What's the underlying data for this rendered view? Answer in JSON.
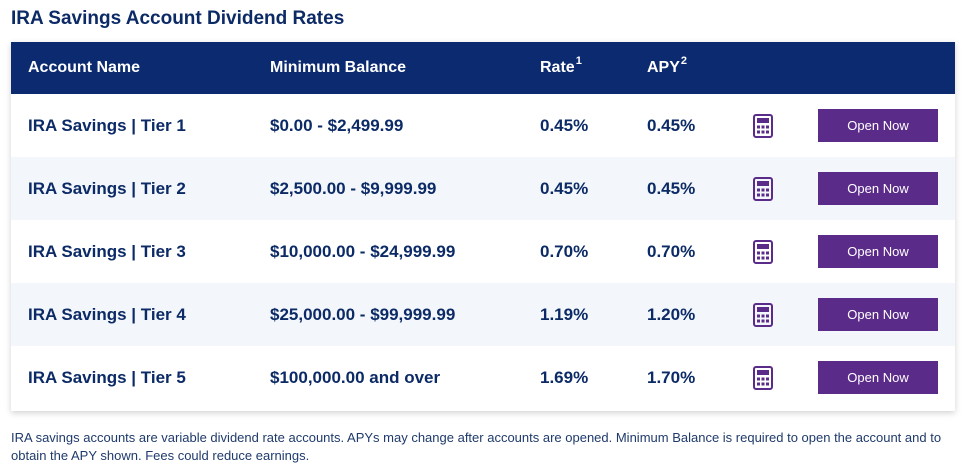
{
  "title": "IRA Savings Account Dividend Rates",
  "colors": {
    "header_bg": "#0b2a6f",
    "text_navy": "#0b2a66",
    "button_purple": "#5b2b8a",
    "icon_purple": "#5b2b8a",
    "row_alt": "#f3f7fb"
  },
  "table": {
    "headers": {
      "account_name": "Account Name",
      "minimum_balance": "Minimum Balance",
      "rate": "Rate",
      "rate_sup": "1",
      "apy": "APY",
      "apy_sup": "2"
    },
    "rows": [
      {
        "name": "IRA Savings | Tier 1",
        "min_balance": "$0.00 - $2,499.99",
        "rate": "0.45%",
        "apy": "0.45%",
        "icon": "calculator-icon",
        "button": "Open Now"
      },
      {
        "name": "IRA Savings | Tier 2",
        "min_balance": "$2,500.00 - $9,999.99",
        "rate": "0.45%",
        "apy": "0.45%",
        "icon": "calculator-icon",
        "button": "Open Now"
      },
      {
        "name": "IRA Savings | Tier 3",
        "min_balance": "$10,000.00 - $24,999.99",
        "rate": "0.70%",
        "apy": "0.70%",
        "icon": "calculator-icon",
        "button": "Open Now"
      },
      {
        "name": "IRA Savings | Tier 4",
        "min_balance": "$25,000.00 - $99,999.99",
        "rate": "1.19%",
        "apy": "1.20%",
        "icon": "calculator-icon",
        "button": "Open Now"
      },
      {
        "name": "IRA Savings | Tier 5",
        "min_balance": "$100,000.00 and over",
        "rate": "1.69%",
        "apy": "1.70%",
        "icon": "calculator-icon",
        "button": "Open Now"
      }
    ]
  },
  "footnote": "IRA savings accounts are variable dividend rate accounts. APYs may change after accounts are opened. Minimum Balance is required to open the account and to obtain the APY shown. Fees could reduce earnings."
}
